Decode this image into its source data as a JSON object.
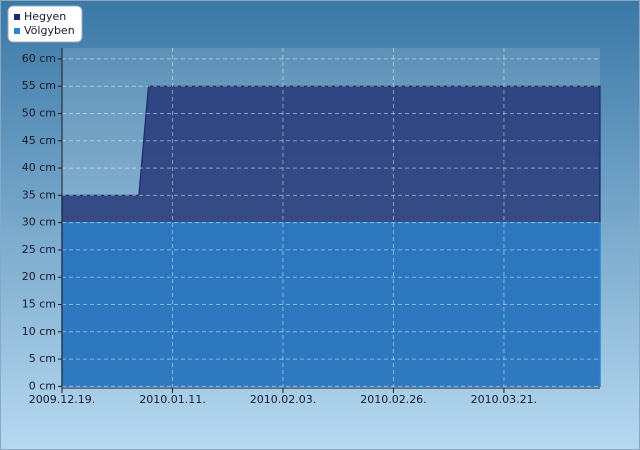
{
  "chart_data": {
    "type": "area",
    "x": [
      "2009-12-19",
      "2010-01-04",
      "2010-01-06",
      "2010-04-10"
    ],
    "series": [
      {
        "name": "Hegyen",
        "color": "#1b2a6e",
        "values": [
          35,
          35,
          55,
          55
        ]
      },
      {
        "name": "Völgyben",
        "color": "#2a86d0",
        "values": [
          30,
          30,
          30,
          30
        ]
      }
    ],
    "xlim": [
      "2009-12-19",
      "2010-04-10"
    ],
    "xticks": [
      {
        "value": "2009-12-19",
        "label": "2009.12.19."
      },
      {
        "value": "2010-01-11",
        "label": "2010.01.11."
      },
      {
        "value": "2010-02-03",
        "label": "2010.02.03."
      },
      {
        "value": "2010-02-26",
        "label": "2010.02.26."
      },
      {
        "value": "2010-03-21",
        "label": "2010.03.21."
      }
    ],
    "ylim": [
      -0.3,
      62
    ],
    "yticks": [
      {
        "value": 0,
        "label": "0 cm"
      },
      {
        "value": 5,
        "label": "5 cm"
      },
      {
        "value": 10,
        "label": "10 cm"
      },
      {
        "value": 15,
        "label": "15 cm"
      },
      {
        "value": 20,
        "label": "20 cm"
      },
      {
        "value": 25,
        "label": "25 cm"
      },
      {
        "value": 30,
        "label": "30 cm"
      },
      {
        "value": 35,
        "label": "35 cm"
      },
      {
        "value": 40,
        "label": "40 cm"
      },
      {
        "value": 45,
        "label": "45 cm"
      },
      {
        "value": 50,
        "label": "50 cm"
      },
      {
        "value": 55,
        "label": "55 cm"
      },
      {
        "value": 60,
        "label": "60 cm"
      }
    ],
    "grid": true,
    "legend": "top-left"
  }
}
